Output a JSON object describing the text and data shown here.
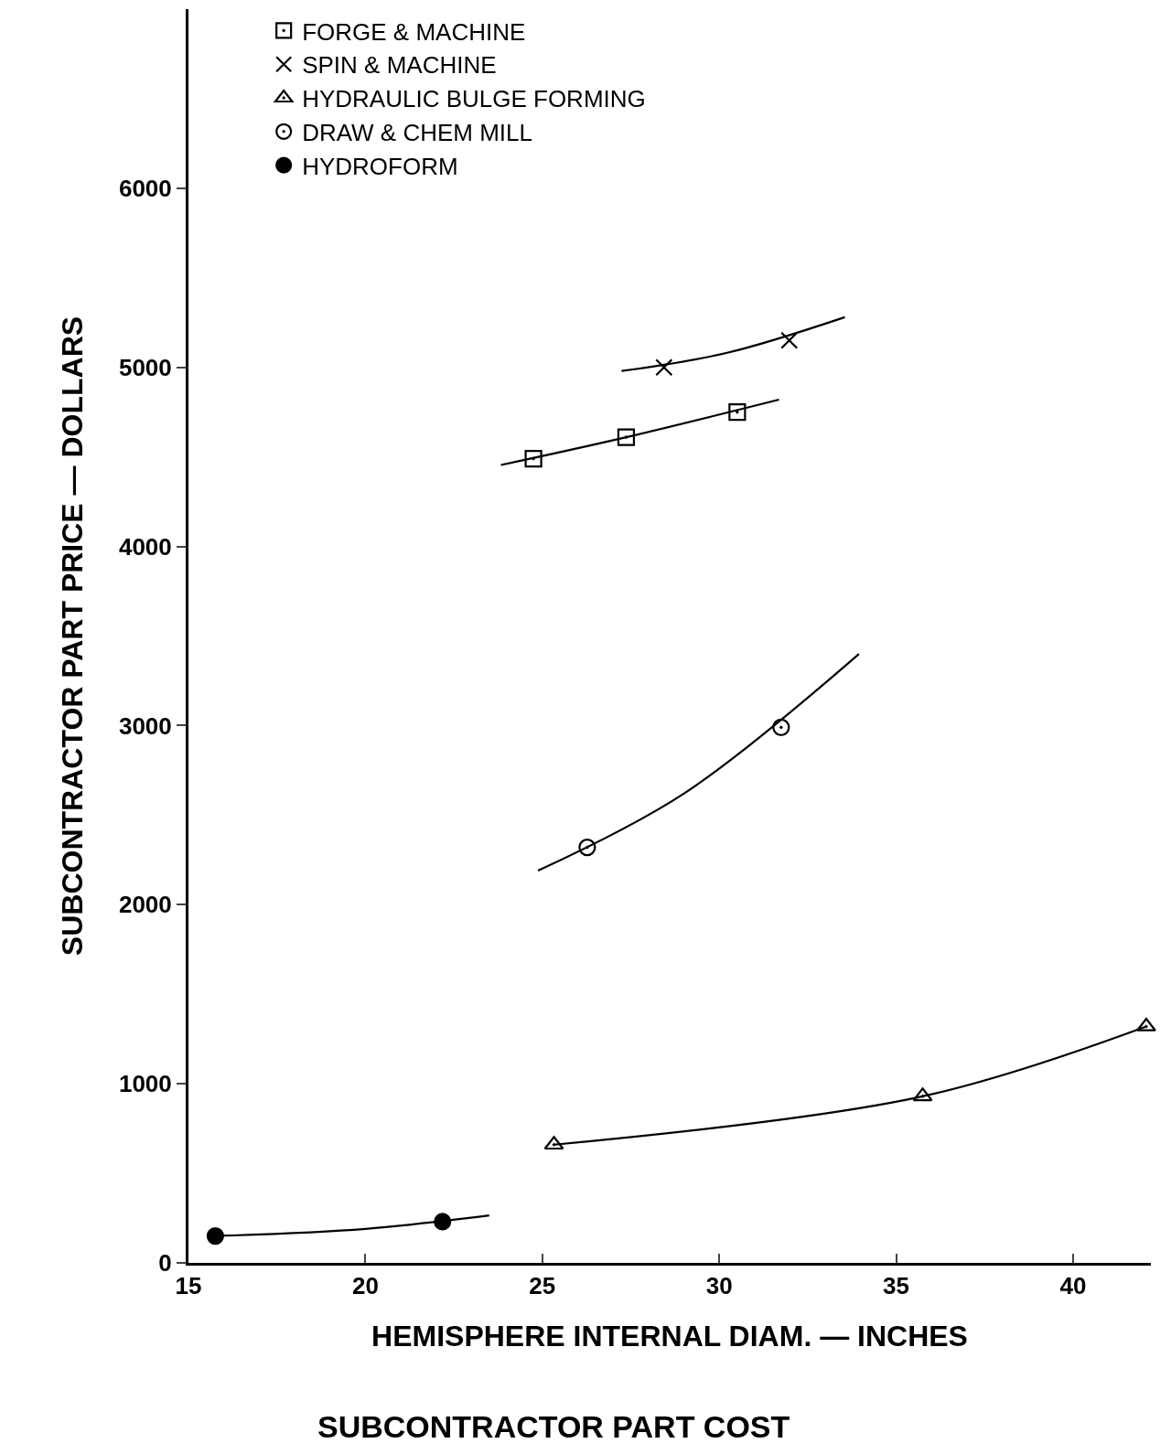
{
  "chart_data": {
    "type": "scatter",
    "title": "SUBCONTRACTOR PART COST",
    "xlabel": "HEMISPHERE INTERNAL DIAM. — INCHES",
    "ylabel": "SUBCONTRACTOR PART PRICE — DOLLARS",
    "xlim": [
      15,
      42.2
    ],
    "xticks": [
      15,
      20,
      25,
      30,
      35,
      40
    ],
    "ylim": [
      0,
      7000
    ],
    "yticks": [
      0,
      1000,
      2000,
      3000,
      4000,
      5000,
      6000
    ],
    "grid": false,
    "legend": "top left",
    "series": [
      {
        "name": "FORGE & MACHINE",
        "color": "#000000",
        "marker": "square",
        "x": [
          24.75,
          27.37,
          30.51
        ],
        "values": [
          4490,
          4610,
          4750
        ]
      },
      {
        "name": "SPIN & MACHINE",
        "color": "#000000",
        "marker": "cross",
        "x": [
          28.44,
          31.98
        ],
        "values": [
          5000,
          5150
        ]
      },
      {
        "name": "HYDRAULIC BULGE FORMING",
        "color": "#000000",
        "marker": "triangle",
        "x": [
          25.33,
          35.75,
          42.07
        ],
        "values": [
          660,
          930,
          1320
        ]
      },
      {
        "name": "DRAW & CHEM MILL",
        "color": "#000000",
        "marker": "circle",
        "x": [
          26.27,
          31.75
        ],
        "values": [
          2320,
          2990
        ]
      },
      {
        "name": "HYDROFORM",
        "color": "#000000",
        "marker": "circle",
        "x": [
          15.76,
          22.18
        ],
        "values": [
          150,
          230
        ]
      },
      {
        "type": "line",
        "color": "#000000",
        "x": [
          23.83,
          27.37,
          31.69
        ],
        "values": [
          4455,
          4610,
          4820
        ]
      },
      {
        "type": "line",
        "color": "#000000",
        "x": [
          27.24,
          30.2,
          33.55
        ],
        "values": [
          4980,
          5080,
          5280
        ]
      },
      {
        "type": "line",
        "color": "#000000",
        "x": [
          25.33,
          35.75,
          42.07
        ],
        "values": [
          660,
          930,
          1320
        ]
      },
      {
        "type": "line",
        "color": "#000000",
        "x": [
          24.88,
          29,
          33.95
        ],
        "values": [
          2190,
          2620,
          3400
        ]
      },
      {
        "type": "line",
        "color": "#000000",
        "x": [
          15.76,
          20,
          23.5
        ],
        "values": [
          150,
          190,
          265
        ]
      }
    ]
  }
}
